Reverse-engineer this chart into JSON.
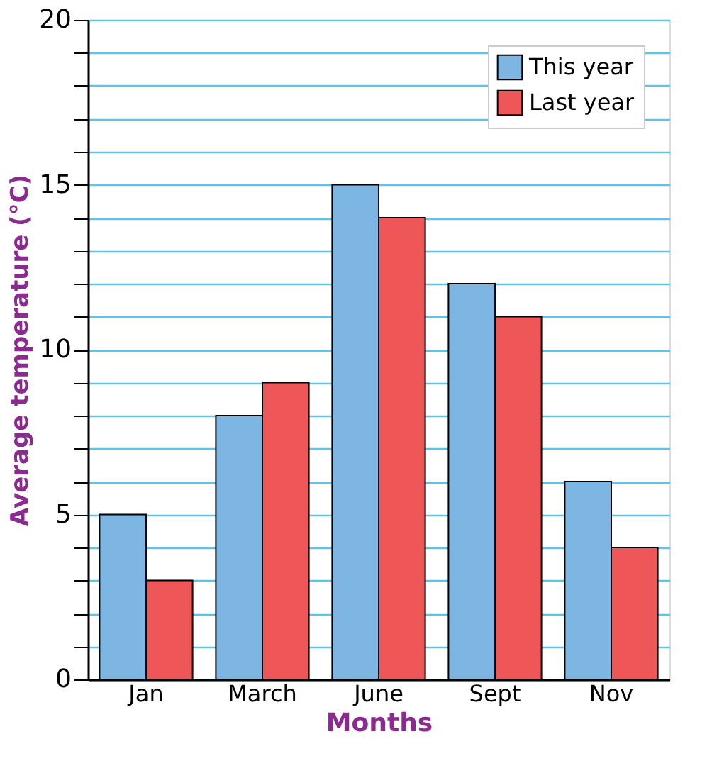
{
  "chart_data": {
    "type": "bar",
    "xlabel": "Months",
    "ylabel": "Average temperature (°C)",
    "categories": [
      "Jan",
      "March",
      "June",
      "Sept",
      "Nov"
    ],
    "series": [
      {
        "name": "This year",
        "color": "#7db5e3",
        "values": [
          5,
          8,
          15,
          12,
          6
        ]
      },
      {
        "name": "Last year",
        "color": "#ee5658",
        "values": [
          3,
          9,
          14,
          11,
          4
        ]
      }
    ],
    "ylim": [
      0,
      20
    ],
    "yticks": [
      0,
      {
        "value": 1,
        "label": null
      },
      {
        "value": 2,
        "label": null
      },
      {
        "value": 3,
        "label": null
      },
      {
        "value": 4,
        "label": null
      },
      5,
      {
        "value": 6,
        "label": null
      },
      {
        "value": 7,
        "label": null
      },
      {
        "value": 8,
        "label": null
      },
      {
        "value": 9,
        "label": null
      },
      10,
      {
        "value": 11,
        "label": null
      },
      {
        "value": 12,
        "label": null
      },
      {
        "value": 13,
        "label": null
      },
      {
        "value": 14,
        "label": null
      },
      15,
      {
        "value": 16,
        "label": null
      },
      {
        "value": 17,
        "label": null
      },
      {
        "value": 18,
        "label": null
      },
      {
        "value": 19,
        "label": null
      },
      20
    ],
    "grid": "y",
    "legend": "top right"
  }
}
